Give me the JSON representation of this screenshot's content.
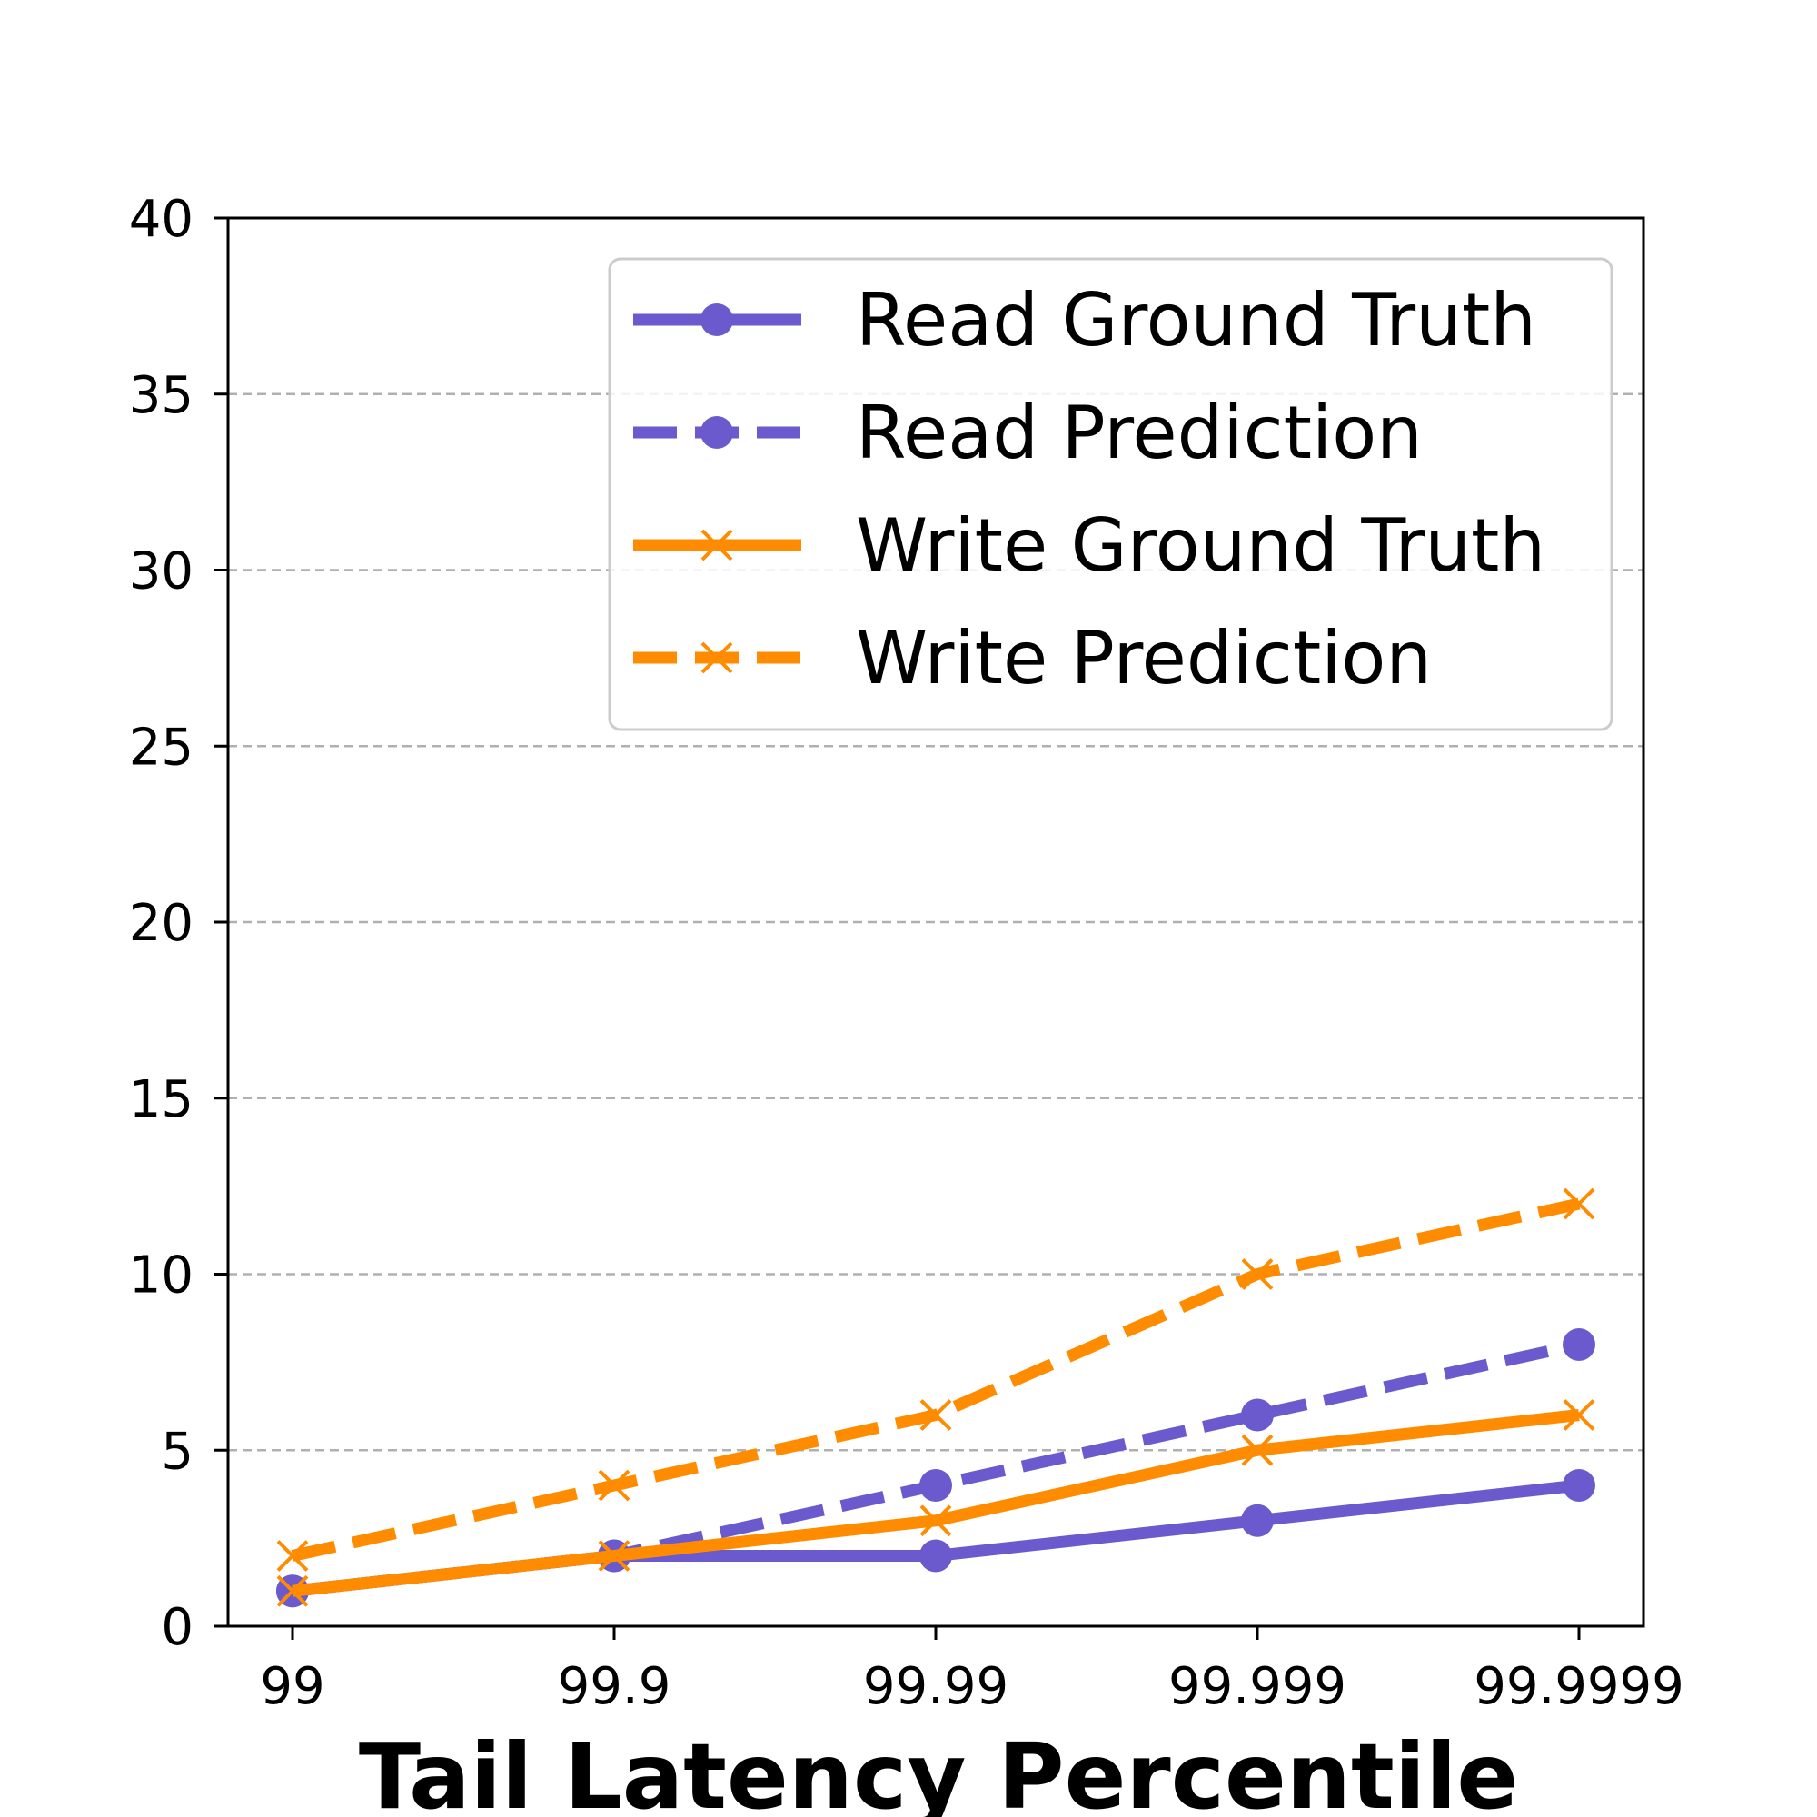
{
  "chart_data": {
    "type": "line",
    "title": "",
    "xlabel": "Tail Latency Percentile",
    "ylabel": "",
    "categories": [
      "99",
      "99.9",
      "99.99",
      "99.999",
      "99.9999"
    ],
    "ylim": [
      0,
      40
    ],
    "yticks": [
      0,
      5,
      10,
      15,
      20,
      25,
      30,
      35,
      40
    ],
    "grid": "y, dashed",
    "legend_position": "top-right",
    "series": [
      {
        "name": "Read Ground Truth",
        "values": [
          1,
          2,
          2,
          3,
          4
        ],
        "color": "#6a5acd",
        "linestyle": "solid",
        "marker": "circle"
      },
      {
        "name": "Read Prediction",
        "values": [
          1,
          2,
          4,
          6,
          8
        ],
        "color": "#6a5acd",
        "linestyle": "dashed",
        "marker": "circle"
      },
      {
        "name": "Write Ground Truth",
        "values": [
          1,
          2,
          3,
          5,
          6
        ],
        "color": "#ff8c00",
        "linestyle": "solid",
        "marker": "x"
      },
      {
        "name": "Write Prediction",
        "values": [
          2,
          4,
          6,
          10,
          12
        ],
        "color": "#ff8c00",
        "linestyle": "dashed",
        "marker": "x"
      }
    ]
  }
}
